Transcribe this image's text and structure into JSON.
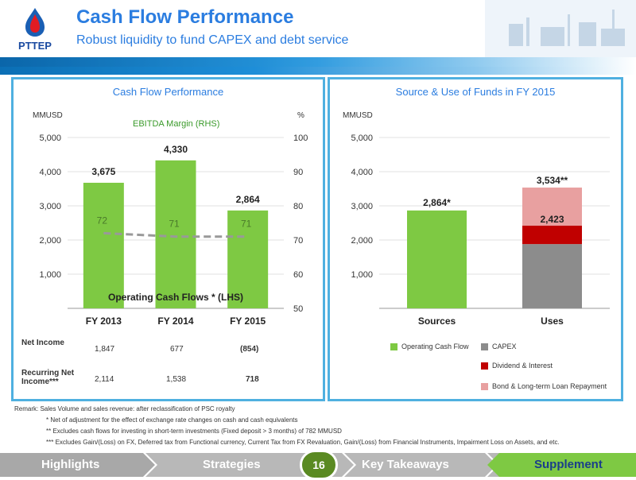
{
  "header": {
    "logo_text": "PTTEP",
    "title": "Cash Flow Performance",
    "subtitle": "Robust liquidity to fund CAPEX and debt service"
  },
  "colors": {
    "accent": "#2b7de0",
    "green": "#7ec943",
    "grey": "#8c8c8c",
    "red": "#c00000",
    "pink": "#e8a0a0",
    "frame": "#4fb0e0"
  },
  "left_panel": {
    "title": "Cash Flow Performance",
    "y_left_unit": "MMUSD",
    "y_right_unit": "%",
    "ebitda_label": "EBITDA Margin (RHS)",
    "ocf_label": "Operating Cash Flows * (LHS)",
    "row_labels": {
      "net_income": "Net Income",
      "recurring": "Recurring Net Income***"
    },
    "net_income": [
      "1,847",
      "677",
      "(854)"
    ],
    "recurring_net_income": [
      "2,114",
      "1,538",
      "718"
    ]
  },
  "right_panel": {
    "title": "Source & Use of Funds in FY 2015",
    "y_unit": "MMUSD",
    "legend": [
      "Operating Cash Flow",
      "CAPEX",
      "Dividend & Interest",
      "Bond & Long-term Loan Repayment"
    ]
  },
  "chart_data": [
    {
      "type": "bar",
      "title": "Cash Flow Performance",
      "categories": [
        "FY 2013",
        "FY 2014",
        "FY 2015"
      ],
      "ylim": [
        0,
        5000
      ],
      "yticks": [
        "5,000",
        "4,000",
        "3,000",
        "2,000",
        "1,000"
      ],
      "y2lim": [
        50,
        100
      ],
      "y2ticks": [
        "100",
        "90",
        "80",
        "70",
        "60",
        "50"
      ],
      "series": [
        {
          "name": "Operating Cash Flows * (LHS)",
          "type": "bar",
          "values": [
            3675,
            4330,
            2864
          ],
          "labels": [
            "3,675",
            "4,330",
            "2,864"
          ]
        },
        {
          "name": "EBITDA Margin (RHS)",
          "type": "line",
          "axis": "right",
          "values": [
            72,
            71,
            71
          ],
          "labels": [
            "72",
            "71",
            "71"
          ]
        }
      ]
    },
    {
      "type": "bar",
      "stacked": true,
      "title": "Source & Use of Funds in FY 2015",
      "categories": [
        "Sources",
        "Uses"
      ],
      "ylim": [
        0,
        5000
      ],
      "yticks": [
        "5,000",
        "4,000",
        "3,000",
        "2,000",
        "1,000"
      ],
      "series": [
        {
          "name": "Operating Cash Flow",
          "values": [
            2864,
            0
          ]
        },
        {
          "name": "CAPEX",
          "values": [
            0,
            1880
          ]
        },
        {
          "name": "Dividend & Interest",
          "values": [
            0,
            543
          ]
        },
        {
          "name": "Bond & Long-term Loan Repayment",
          "values": [
            0,
            1111
          ]
        }
      ],
      "data_labels": [
        "2,864*",
        "2,423",
        "3,534**"
      ]
    }
  ],
  "remarks": {
    "main": "Remark:  Sales Volume and sales revenue: after reclassification of PSC royalty",
    "note1": "*      Net of adjustment for the effect of exchange rate changes on cash and cash equivalents",
    "note2": "**     Excludes cash flows for investing in short-term investments (Fixed deposit > 3 months) of 782 MMUSD",
    "note3": "***    Excludes Gain/(Loss) on FX, Deferred tax from Functional currency, Current Tax from FX Revaluation, Gain/(Loss) from Financial Instruments, Impairment Loss on Assets, and etc."
  },
  "footer": {
    "nav": [
      "Highlights",
      "Strategies",
      "Key Takeaways",
      "Supplement"
    ],
    "page_number": "16"
  }
}
